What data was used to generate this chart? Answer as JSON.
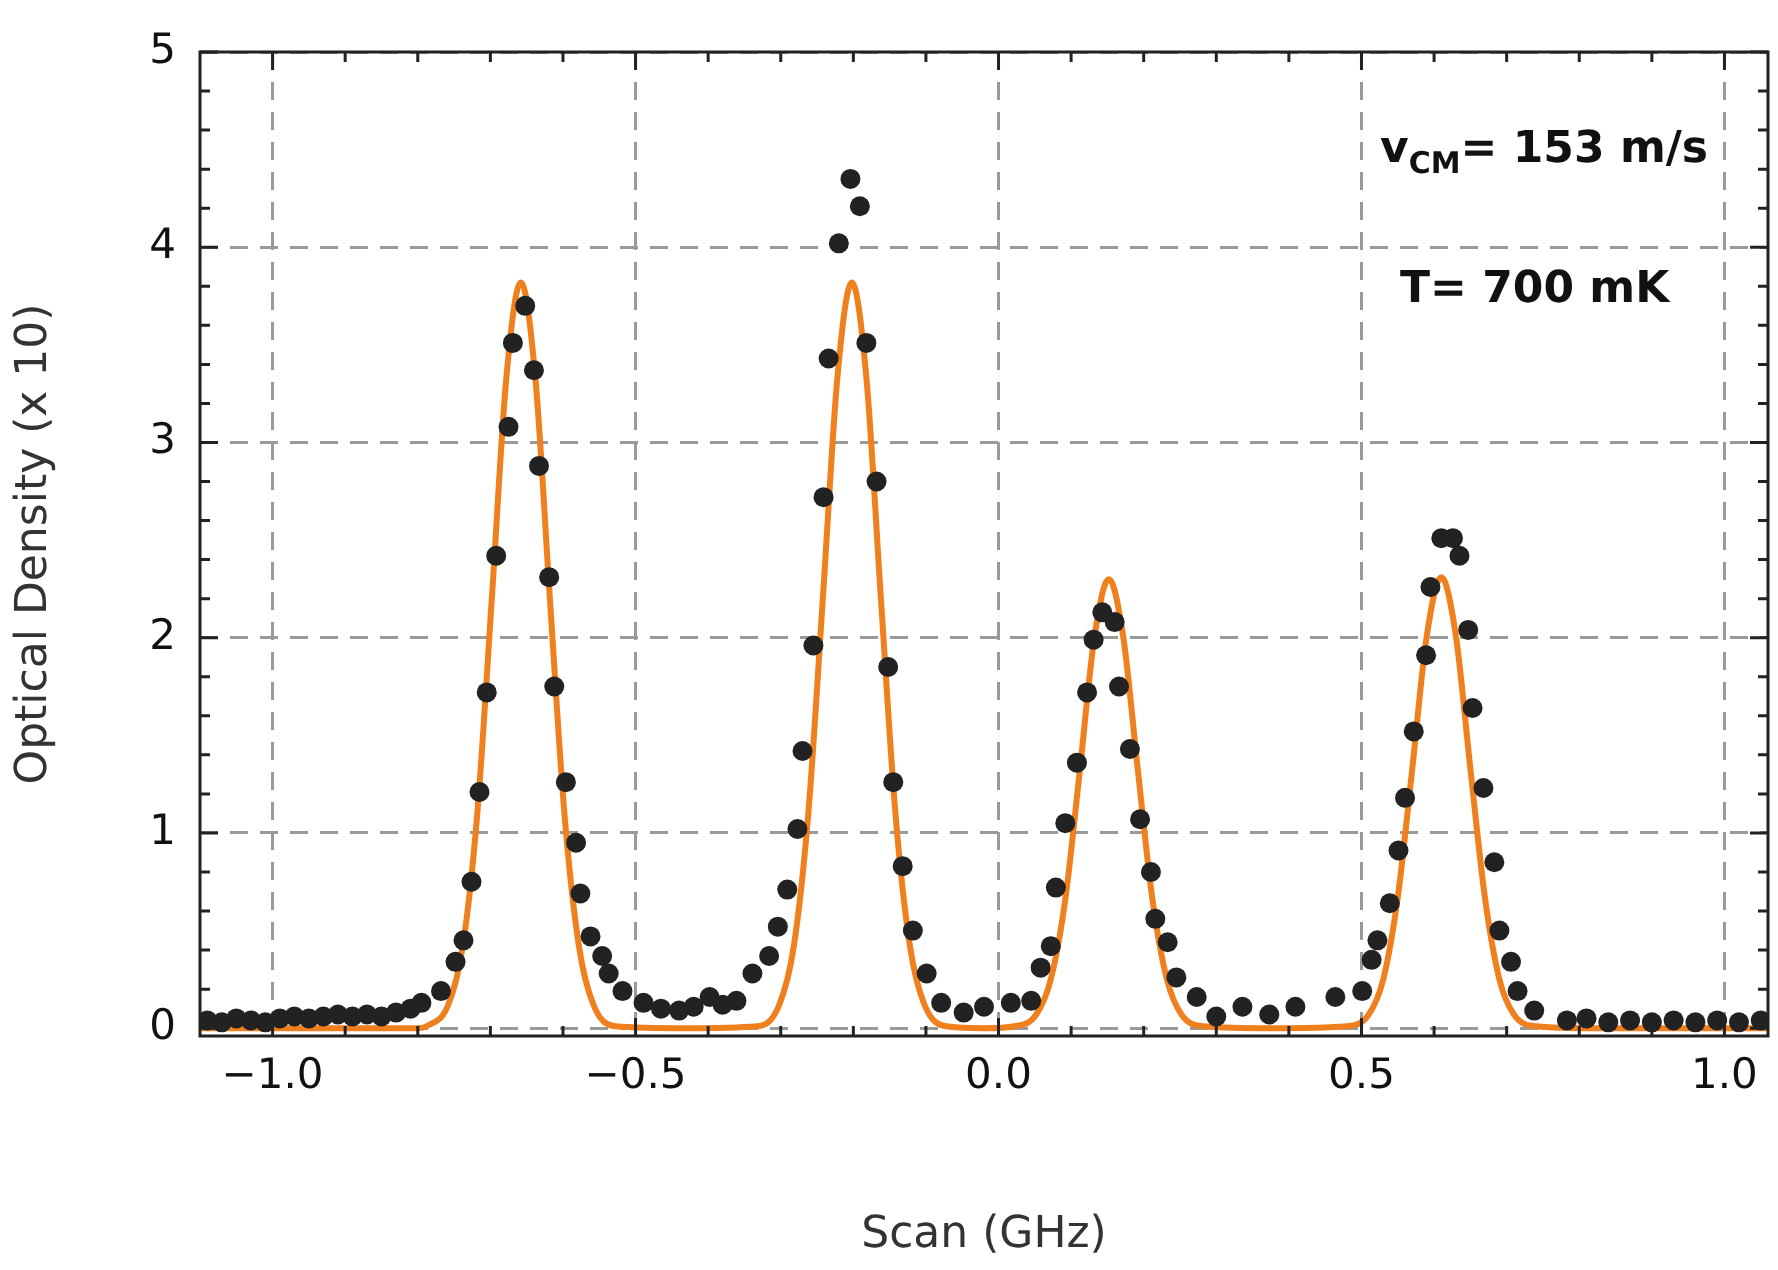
{
  "chart_data": {
    "type": "scatter",
    "xlabel": "Scan (GHz)",
    "ylabel": "Optical Density (x 10)",
    "annotations": [
      "v$_{CM}$= 153 m/s",
      "T= 700 mK"
    ],
    "xlim": [
      -1.1,
      1.06
    ],
    "ylim": [
      -0.04,
      5
    ],
    "xticks": [
      {
        "value": -1,
        "label": "−1.0"
      },
      {
        "value": -0.9,
        "label": null
      },
      {
        "value": -0.8,
        "label": null
      },
      {
        "value": -0.7,
        "label": null
      },
      {
        "value": -0.6,
        "label": null
      },
      {
        "value": -0.5,
        "label": "−0.5"
      },
      {
        "value": -0.4,
        "label": null
      },
      {
        "value": -0.3,
        "label": null
      },
      {
        "value": -0.2,
        "label": null
      },
      {
        "value": -0.1,
        "label": null
      },
      {
        "value": 0,
        "label": "0.0"
      },
      {
        "value": 0.1,
        "label": null
      },
      {
        "value": 0.2,
        "label": null
      },
      {
        "value": 0.3,
        "label": null
      },
      {
        "value": 0.4,
        "label": null
      },
      {
        "value": 0.5,
        "label": "0.5"
      },
      {
        "value": 0.6,
        "label": null
      },
      {
        "value": 0.7,
        "label": null
      },
      {
        "value": 0.8,
        "label": null
      },
      {
        "value": 0.9,
        "label": null
      },
      {
        "value": 1,
        "label": "1.0"
      }
    ],
    "yticks": [
      0,
      {
        "value": 0.2,
        "label": null
      },
      {
        "value": 0.4,
        "label": null
      },
      {
        "value": 0.6,
        "label": null
      },
      {
        "value": 0.8,
        "label": null
      },
      1,
      {
        "value": 1.2,
        "label": null
      },
      {
        "value": 1.4,
        "label": null
      },
      {
        "value": 1.6,
        "label": null
      },
      {
        "value": 1.8,
        "label": null
      },
      2,
      {
        "value": 2.2,
        "label": null
      },
      {
        "value": 2.4,
        "label": null
      },
      {
        "value": 2.6,
        "label": null
      },
      {
        "value": 2.8,
        "label": null
      },
      3,
      {
        "value": 3.2,
        "label": null
      },
      {
        "value": 3.4,
        "label": null
      },
      {
        "value": 3.6,
        "label": null
      },
      {
        "value": 3.8,
        "label": null
      },
      4,
      {
        "value": 4.2,
        "label": null
      },
      {
        "value": 4.4,
        "label": null
      },
      {
        "value": 4.6,
        "label": null
      },
      {
        "value": 4.8,
        "label": null
      },
      5
    ],
    "grid": true,
    "series": [
      {
        "type": "scatter",
        "color": "#222222",
        "marker": "circle",
        "x": [
          -1.09,
          -1.07,
          -1.05,
          -1.03,
          -1.01,
          -0.99,
          -0.97,
          -0.95,
          -0.93,
          -0.91,
          -0.89,
          -0.87,
          -0.85,
          -0.83,
          -0.81,
          -0.795,
          -0.768,
          -0.748,
          -0.737,
          -0.726,
          -0.715,
          -0.705,
          -0.692,
          -0.675,
          -0.669,
          -0.652,
          -0.64,
          -0.633,
          -0.619,
          -0.612,
          -0.596,
          -0.582,
          -0.576,
          -0.562,
          -0.546,
          -0.537,
          -0.518,
          -0.489,
          -0.465,
          -0.44,
          -0.42,
          -0.398,
          -0.38,
          -0.361,
          -0.339,
          -0.316,
          -0.304,
          -0.291,
          -0.277,
          -0.27,
          -0.255,
          -0.241,
          -0.234,
          -0.22,
          -0.204,
          -0.191,
          -0.182,
          -0.168,
          -0.152,
          -0.145,
          -0.132,
          -0.118,
          -0.099,
          -0.079,
          -0.048,
          -0.02,
          0.017,
          0.045,
          0.058,
          0.072,
          0.079,
          0.092,
          0.108,
          0.122,
          0.131,
          0.143,
          0.16,
          0.166,
          0.181,
          0.195,
          0.21,
          0.216,
          0.233,
          0.245,
          0.273,
          0.3,
          0.336,
          0.373,
          0.409,
          0.464,
          0.501,
          0.514,
          0.522,
          0.539,
          0.551,
          0.56,
          0.572,
          0.589,
          0.595,
          0.61,
          0.626,
          0.635,
          0.647,
          0.653,
          0.668,
          0.683,
          0.69,
          0.706,
          0.715,
          0.738,
          0.783,
          0.81,
          0.84,
          0.87,
          0.9,
          0.93,
          0.96,
          0.99,
          1.02,
          1.05
        ],
        "values": [
          0.04,
          0.03,
          0.05,
          0.04,
          0.03,
          0.05,
          0.06,
          0.05,
          0.06,
          0.07,
          0.06,
          0.07,
          0.06,
          0.08,
          0.1,
          0.13,
          0.19,
          0.34,
          0.45,
          0.75,
          1.21,
          1.72,
          2.42,
          3.08,
          3.51,
          3.7,
          3.37,
          2.88,
          2.31,
          1.75,
          1.26,
          0.95,
          0.69,
          0.47,
          0.37,
          0.28,
          0.19,
          0.13,
          0.1,
          0.09,
          0.11,
          0.16,
          0.12,
          0.14,
          0.28,
          0.37,
          0.52,
          0.71,
          1.02,
          1.42,
          1.96,
          2.72,
          3.43,
          4.02,
          4.35,
          4.21,
          3.51,
          2.8,
          1.85,
          1.26,
          0.83,
          0.5,
          0.28,
          0.13,
          0.08,
          0.11,
          0.13,
          0.14,
          0.31,
          0.42,
          0.72,
          1.05,
          1.36,
          1.72,
          1.99,
          2.13,
          2.08,
          1.75,
          1.43,
          1.07,
          0.8,
          0.56,
          0.44,
          0.26,
          0.16,
          0.06,
          0.11,
          0.07,
          0.11,
          0.16,
          0.19,
          0.35,
          0.45,
          0.64,
          0.91,
          1.18,
          1.52,
          1.91,
          2.26,
          2.51,
          2.51,
          2.42,
          2.04,
          1.64,
          1.23,
          0.85,
          0.5,
          0.34,
          0.19,
          0.09,
          0.04,
          0.05,
          0.03,
          0.04,
          0.03,
          0.04,
          0.03,
          0.04,
          0.03,
          0.04
        ]
      },
      {
        "type": "line",
        "color": "#f07f1e",
        "marker": "none",
        "line_style": "solid",
        "x": [
          -1.1,
          -0.8,
          -0.788,
          -0.758,
          -0.738,
          -0.718,
          -0.698,
          -0.678,
          -0.658,
          -0.638,
          -0.618,
          -0.598,
          -0.578,
          -0.558,
          -0.528,
          -0.43,
          -0.332,
          -0.302,
          -0.282,
          -0.262,
          -0.242,
          -0.222,
          -0.202,
          -0.182,
          -0.162,
          -0.142,
          -0.122,
          -0.102,
          -0.072,
          -0.02,
          0.022,
          0.052,
          0.072,
          0.092,
          0.112,
          0.132,
          0.152,
          0.172,
          0.192,
          0.212,
          0.232,
          0.252,
          0.282,
          0.38,
          0.48,
          0.51,
          0.53,
          0.55,
          0.57,
          0.59,
          0.61,
          0.63,
          0.65,
          0.67,
          0.69,
          0.71,
          0.74,
          0.82,
          1.06
        ],
        "values": [
          0,
          0,
          0.01,
          0.12,
          0.42,
          1.1,
          2.2,
          3.33,
          3.82,
          3.33,
          2.2,
          1.1,
          0.42,
          0.12,
          0.01,
          0,
          0.01,
          0.12,
          0.42,
          1.1,
          2.2,
          3.33,
          3.82,
          3.33,
          2.2,
          1.1,
          0.42,
          0.12,
          0.01,
          0,
          0.01,
          0.07,
          0.25,
          0.66,
          1.32,
          2,
          2.3,
          2,
          1.32,
          0.66,
          0.25,
          0.07,
          0.01,
          0,
          0.01,
          0.07,
          0.25,
          0.67,
          1.33,
          2.01,
          2.31,
          2.01,
          1.33,
          0.67,
          0.25,
          0.07,
          0.01,
          0,
          0
        ]
      }
    ]
  }
}
